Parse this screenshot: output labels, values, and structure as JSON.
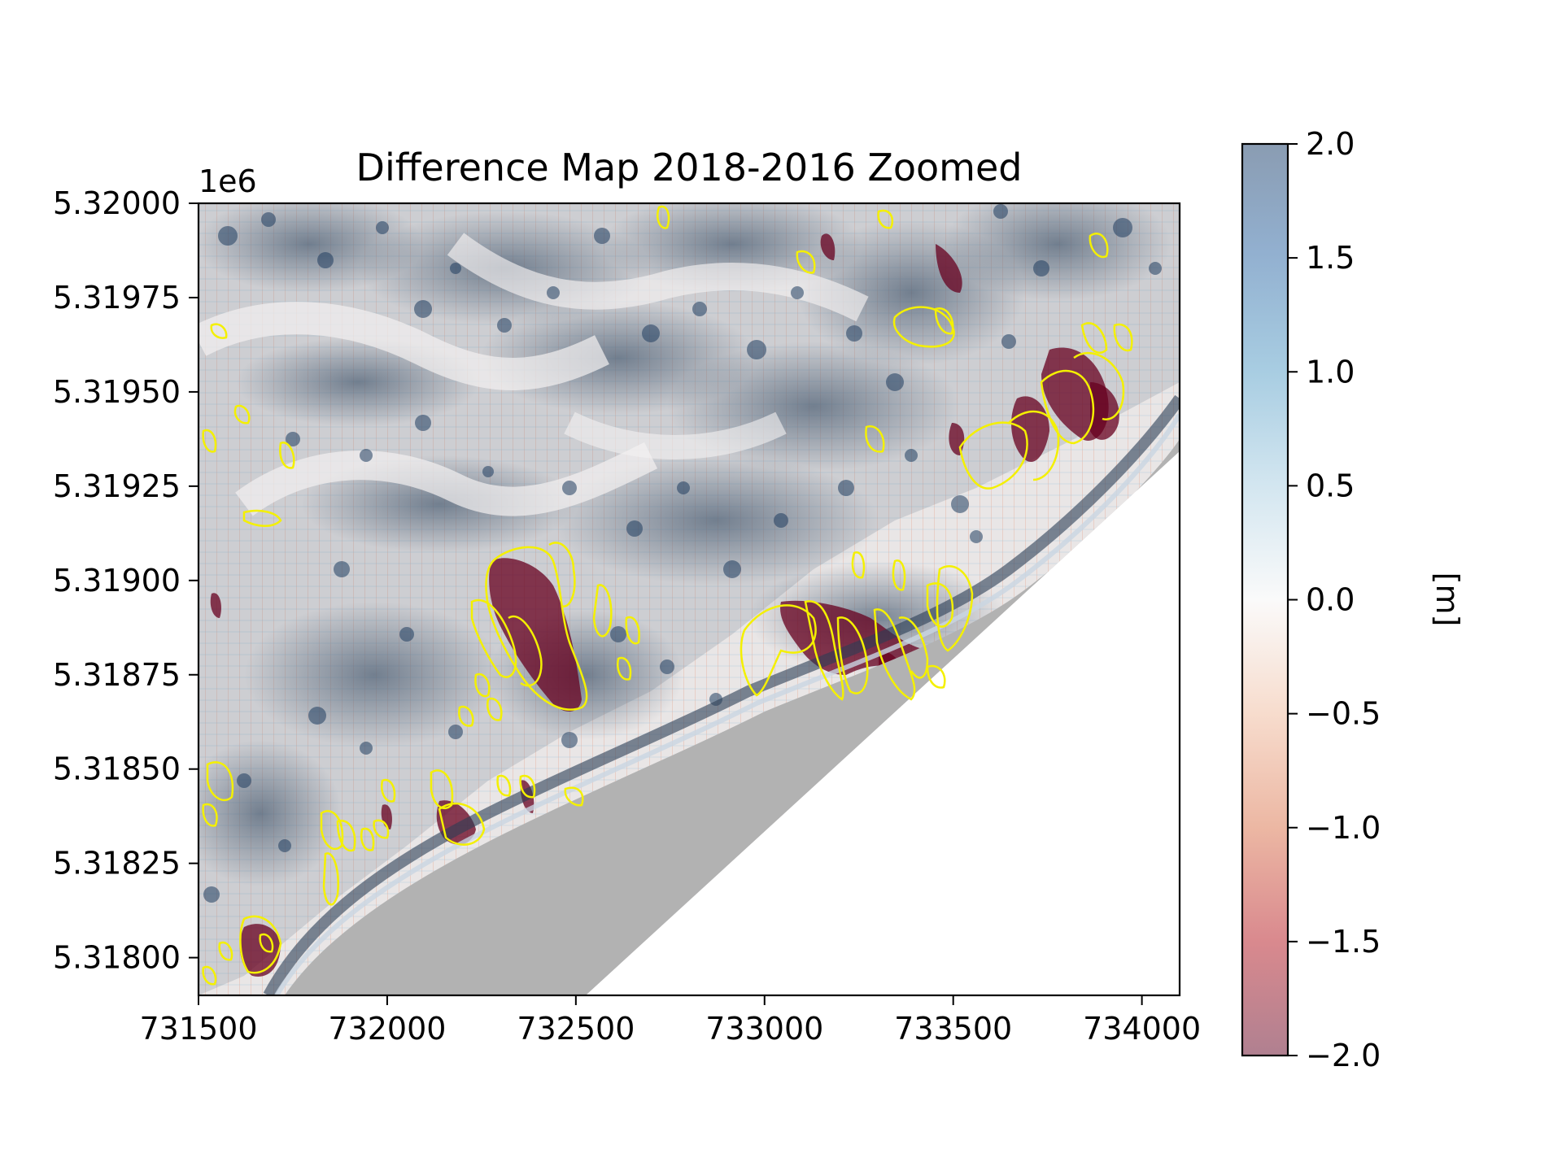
{
  "chart_data": {
    "type": "heatmap",
    "title": "Difference Map 2018-2016 Zoomed",
    "xlabel": "",
    "ylabel": "",
    "xlim": [
      731500,
      734100
    ],
    "ylim": [
      5317900,
      5320000
    ],
    "x_ticks": [
      731500,
      732000,
      732500,
      733000,
      733500,
      734000
    ],
    "x_tick_labels": [
      "731500",
      "732000",
      "732500",
      "733000",
      "733500",
      "734000"
    ],
    "y_ticks": [
      5318000,
      5318250,
      5318500,
      5318750,
      5319000,
      5319250,
      5319500,
      5319750,
      5320000
    ],
    "y_tick_labels": [
      "5.31800",
      "5.31825",
      "5.31850",
      "5.31875",
      "5.31900",
      "5.31925",
      "5.31950",
      "5.31975",
      "5.32000"
    ],
    "y_offset_label": "1e6",
    "colorbar": {
      "label": "[m]",
      "range": [
        -2.0,
        2.0
      ],
      "ticks": [
        2.0,
        1.5,
        1.0,
        0.5,
        0.0,
        -0.5,
        -1.0,
        -1.5,
        -2.0
      ],
      "tick_labels": [
        "2.0",
        "1.5",
        "1.0",
        "0.5",
        "0.0",
        "−0.5",
        "−1.0",
        "−1.5",
        "−2.0"
      ],
      "colormap": "RdBu",
      "alpha": 0.5
    },
    "overlay": "landslide outlines (yellow)",
    "colors": {
      "outline": "#f4f000",
      "negative": "#67001f",
      "positive": "#053061",
      "nodata": "#b0b0b0"
    }
  }
}
